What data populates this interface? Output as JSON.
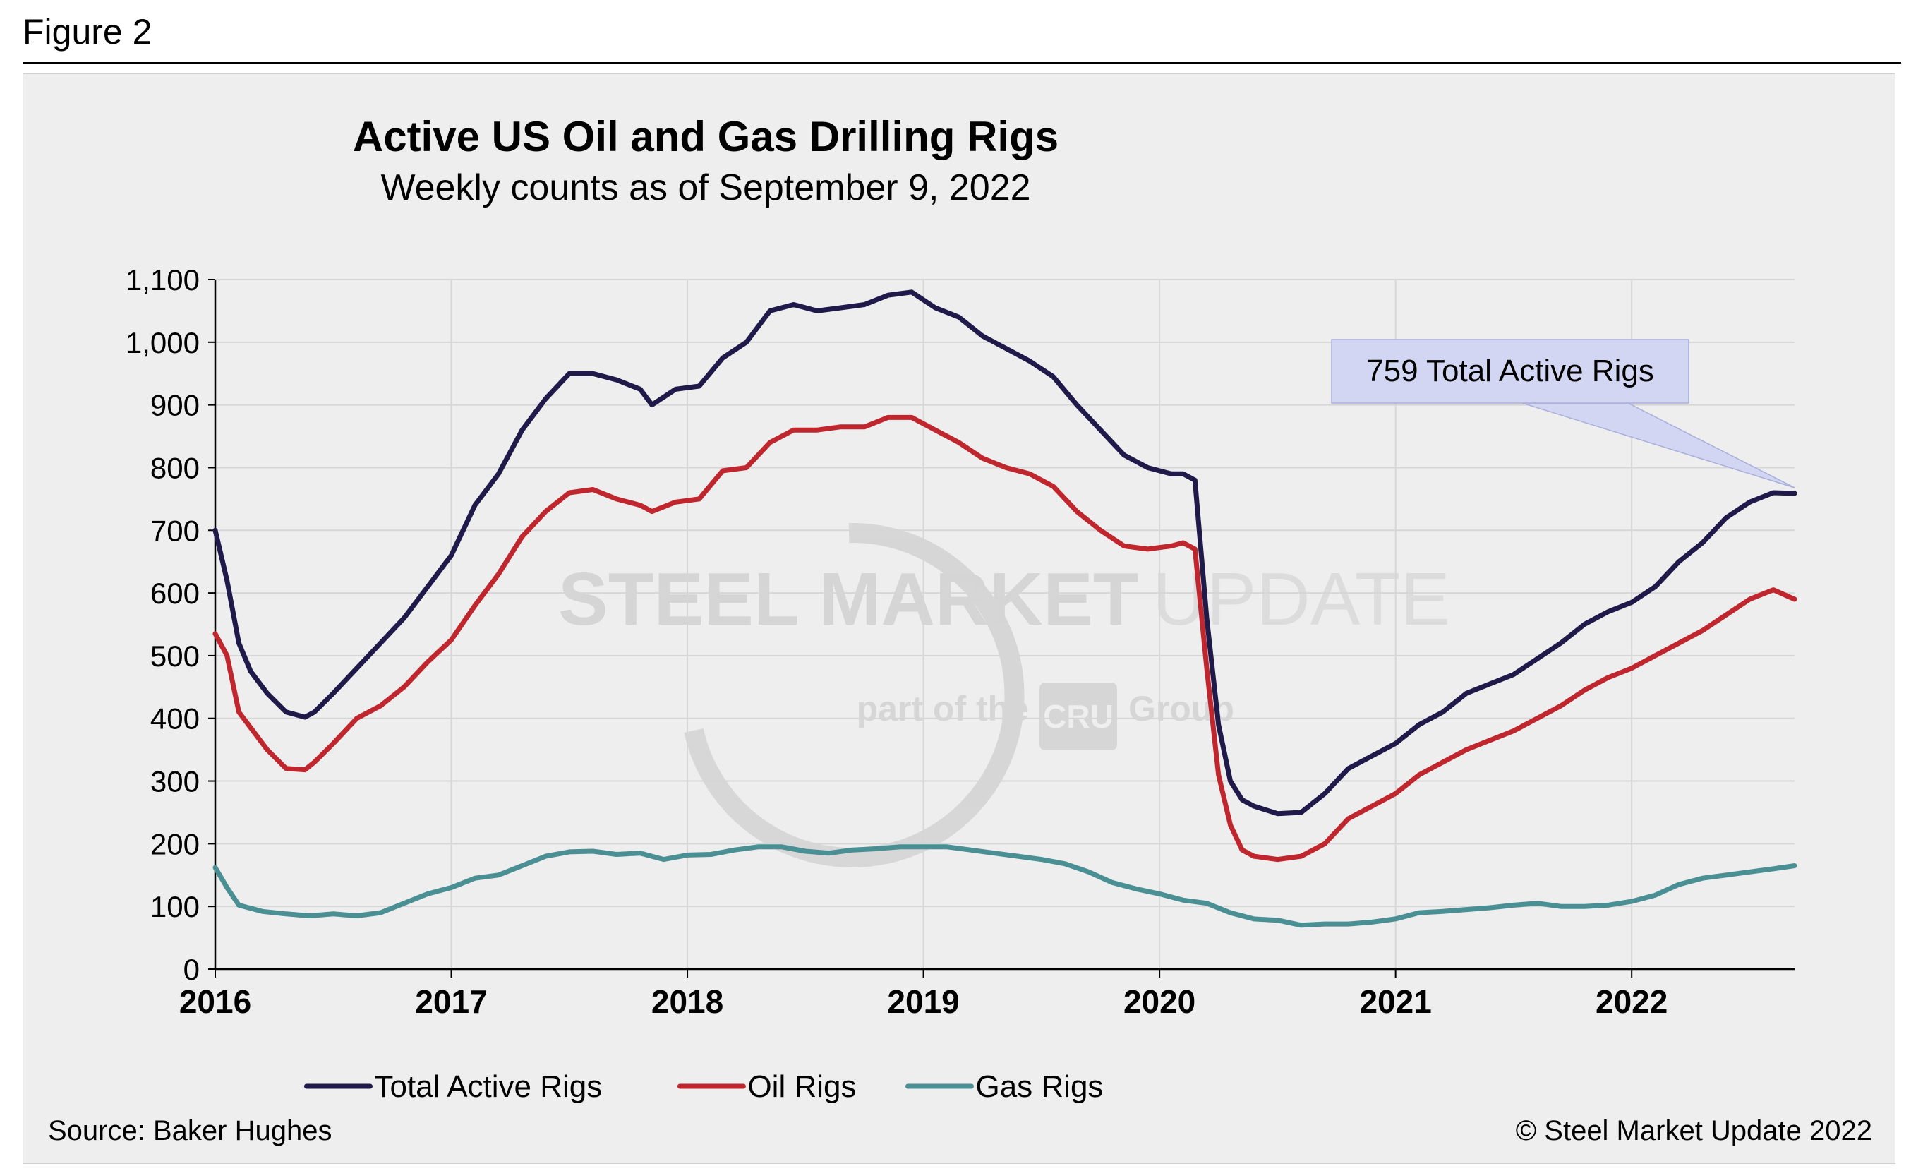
{
  "figure_label": "Figure 2",
  "source_text": "Source: Baker Hughes",
  "copyright_text": "© Steel Market Update 2022",
  "watermark": {
    "main_bold": "STEEL MARKET",
    "main_light": "UPDATE",
    "sub_left": "part of the",
    "sub_logo": "CRU",
    "sub_right": "Group"
  },
  "colors": {
    "total": "#1f1a4a",
    "oil": "#c0262d",
    "gas": "#4a8f94",
    "panel_bg": "#eeeeee",
    "grid": "#d6d6d6",
    "callout_bg": "#d3d6f2"
  },
  "chart_data": {
    "type": "line",
    "title": "Active US Oil and Gas Drilling Rigs",
    "subtitle": "Weekly counts as of September 9, 2022",
    "xlabel": "",
    "ylabel": "",
    "xlim": [
      2016.0,
      2022.69
    ],
    "ylim": [
      0,
      1100
    ],
    "yticks": [
      0,
      100,
      200,
      300,
      400,
      500,
      600,
      700,
      800,
      900,
      1000,
      1100
    ],
    "ytick_labels": [
      "0",
      "100",
      "200",
      "300",
      "400",
      "500",
      "600",
      "700",
      "800",
      "900",
      "1,000",
      "1,100"
    ],
    "xticks": [
      2016,
      2017,
      2018,
      2019,
      2020,
      2021,
      2022
    ],
    "xtick_labels": [
      "2016",
      "2017",
      "2018",
      "2019",
      "2020",
      "2021",
      "2022"
    ],
    "grid": true,
    "legend_position": "bottom",
    "annotation": {
      "text": "759 Total Active Rigs",
      "x": 2022.69,
      "y": 759
    },
    "series": [
      {
        "name": "Total Active Rigs",
        "color": "#1f1a4a",
        "x": [
          2016.0,
          2016.05,
          2016.1,
          2016.15,
          2016.22,
          2016.3,
          2016.38,
          2016.42,
          2016.5,
          2016.6,
          2016.7,
          2016.8,
          2016.9,
          2017.0,
          2017.1,
          2017.2,
          2017.3,
          2017.4,
          2017.5,
          2017.6,
          2017.7,
          2017.8,
          2017.85,
          2017.95,
          2018.05,
          2018.15,
          2018.25,
          2018.35,
          2018.45,
          2018.55,
          2018.65,
          2018.75,
          2018.85,
          2018.95,
          2019.05,
          2019.15,
          2019.25,
          2019.35,
          2019.45,
          2019.55,
          2019.65,
          2019.75,
          2019.85,
          2019.95,
          2020.05,
          2020.1,
          2020.15,
          2020.2,
          2020.25,
          2020.3,
          2020.35,
          2020.4,
          2020.5,
          2020.6,
          2020.7,
          2020.8,
          2020.9,
          2021.0,
          2021.1,
          2021.2,
          2021.3,
          2021.4,
          2021.5,
          2021.6,
          2021.7,
          2021.8,
          2021.9,
          2022.0,
          2022.1,
          2022.2,
          2022.3,
          2022.4,
          2022.5,
          2022.6,
          2022.69
        ],
        "y": [
          700,
          620,
          520,
          475,
          440,
          410,
          402,
          410,
          440,
          480,
          520,
          560,
          610,
          660,
          740,
          790,
          860,
          910,
          950,
          950,
          940,
          925,
          900,
          925,
          930,
          975,
          1000,
          1050,
          1060,
          1050,
          1055,
          1060,
          1075,
          1080,
          1055,
          1040,
          1010,
          990,
          970,
          945,
          900,
          860,
          820,
          800,
          790,
          790,
          780,
          560,
          390,
          300,
          270,
          260,
          248,
          250,
          280,
          320,
          340,
          360,
          390,
          410,
          440,
          455,
          470,
          495,
          520,
          550,
          570,
          585,
          610,
          650,
          680,
          720,
          745,
          760,
          759
        ]
      },
      {
        "name": "Oil Rigs",
        "color": "#c0262d",
        "x": [
          2016.0,
          2016.05,
          2016.1,
          2016.15,
          2016.22,
          2016.3,
          2016.38,
          2016.42,
          2016.5,
          2016.6,
          2016.7,
          2016.8,
          2016.9,
          2017.0,
          2017.1,
          2017.2,
          2017.3,
          2017.4,
          2017.5,
          2017.6,
          2017.7,
          2017.8,
          2017.85,
          2017.95,
          2018.05,
          2018.15,
          2018.25,
          2018.35,
          2018.45,
          2018.55,
          2018.65,
          2018.75,
          2018.85,
          2018.95,
          2019.05,
          2019.15,
          2019.25,
          2019.35,
          2019.45,
          2019.55,
          2019.65,
          2019.75,
          2019.85,
          2019.95,
          2020.05,
          2020.1,
          2020.15,
          2020.2,
          2020.25,
          2020.3,
          2020.35,
          2020.4,
          2020.5,
          2020.6,
          2020.7,
          2020.8,
          2020.9,
          2021.0,
          2021.1,
          2021.2,
          2021.3,
          2021.4,
          2021.5,
          2021.6,
          2021.7,
          2021.8,
          2021.9,
          2022.0,
          2022.1,
          2022.2,
          2022.3,
          2022.4,
          2022.5,
          2022.6,
          2022.69
        ],
        "y": [
          535,
          500,
          410,
          385,
          350,
          320,
          318,
          330,
          360,
          400,
          420,
          450,
          490,
          525,
          580,
          630,
          690,
          730,
          760,
          765,
          750,
          740,
          730,
          745,
          750,
          795,
          800,
          840,
          860,
          860,
          865,
          865,
          880,
          880,
          860,
          840,
          815,
          800,
          790,
          770,
          730,
          700,
          675,
          670,
          675,
          680,
          670,
          480,
          310,
          230,
          190,
          180,
          175,
          180,
          200,
          240,
          260,
          280,
          310,
          330,
          350,
          365,
          380,
          400,
          420,
          445,
          465,
          480,
          500,
          520,
          540,
          565,
          590,
          605,
          590
        ]
      },
      {
        "name": "Gas Rigs",
        "color": "#4a8f94",
        "x": [
          2016.0,
          2016.05,
          2016.1,
          2016.2,
          2016.3,
          2016.4,
          2016.5,
          2016.6,
          2016.7,
          2016.8,
          2016.9,
          2017.0,
          2017.1,
          2017.2,
          2017.3,
          2017.4,
          2017.5,
          2017.6,
          2017.7,
          2017.8,
          2017.9,
          2018.0,
          2018.1,
          2018.2,
          2018.3,
          2018.4,
          2018.5,
          2018.6,
          2018.7,
          2018.8,
          2018.9,
          2019.0,
          2019.1,
          2019.2,
          2019.3,
          2019.4,
          2019.5,
          2019.6,
          2019.7,
          2019.8,
          2019.9,
          2020.0,
          2020.1,
          2020.2,
          2020.3,
          2020.4,
          2020.5,
          2020.6,
          2020.7,
          2020.8,
          2020.9,
          2021.0,
          2021.1,
          2021.2,
          2021.3,
          2021.4,
          2021.5,
          2021.6,
          2021.7,
          2021.8,
          2021.9,
          2022.0,
          2022.1,
          2022.2,
          2022.3,
          2022.4,
          2022.5,
          2022.6,
          2022.69
        ],
        "y": [
          162,
          130,
          102,
          92,
          88,
          85,
          88,
          85,
          90,
          105,
          120,
          130,
          145,
          150,
          165,
          180,
          187,
          188,
          183,
          185,
          175,
          182,
          183,
          190,
          195,
          195,
          188,
          185,
          190,
          192,
          195,
          195,
          195,
          190,
          185,
          180,
          175,
          168,
          155,
          138,
          128,
          120,
          110,
          105,
          90,
          80,
          78,
          70,
          72,
          72,
          75,
          80,
          90,
          92,
          95,
          98,
          102,
          105,
          100,
          100,
          102,
          108,
          118,
          135,
          145,
          150,
          155,
          160,
          165
        ]
      }
    ]
  }
}
